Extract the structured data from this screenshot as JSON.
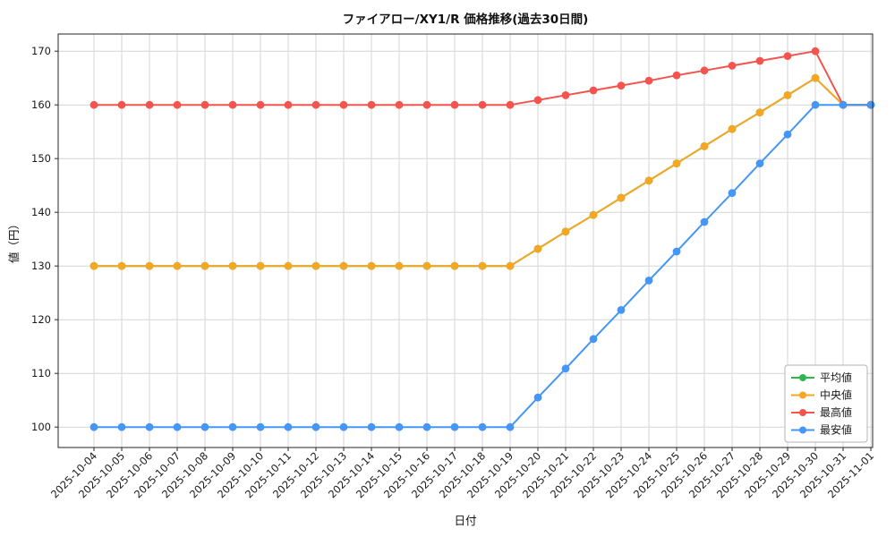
{
  "chart_data": {
    "type": "line",
    "title": "ファイアロー/XY1/R 価格推移(過去30日間)",
    "xlabel": "日付",
    "ylabel": "値（円）",
    "x": [
      "2025-10-04",
      "2025-10-05",
      "2025-10-06",
      "2025-10-07",
      "2025-10-08",
      "2025-10-09",
      "2025-10-10",
      "2025-10-11",
      "2025-10-12",
      "2025-10-13",
      "2025-10-14",
      "2025-10-15",
      "2025-10-16",
      "2025-10-17",
      "2025-10-18",
      "2025-10-19",
      "2025-10-20",
      "2025-10-21",
      "2025-10-22",
      "2025-10-23",
      "2025-10-24",
      "2025-10-25",
      "2025-10-26",
      "2025-10-27",
      "2025-10-28",
      "2025-10-29",
      "2025-10-30",
      "2025-10-31",
      "2025-11-01"
    ],
    "series": [
      {
        "name": "平均値",
        "key": "average",
        "color": "#2db84d",
        "values": [
          130,
          130,
          130,
          130,
          130,
          130,
          130,
          130,
          130,
          130,
          130,
          130,
          130,
          130,
          130,
          130,
          133.2,
          136.4,
          139.5,
          142.7,
          145.9,
          149.1,
          152.3,
          155.5,
          158.6,
          161.8,
          165,
          160,
          160
        ]
      },
      {
        "name": "中央値",
        "key": "median",
        "color": "#f5a623",
        "values": [
          130,
          130,
          130,
          130,
          130,
          130,
          130,
          130,
          130,
          130,
          130,
          130,
          130,
          130,
          130,
          130,
          133.2,
          136.4,
          139.5,
          142.7,
          145.9,
          149.1,
          152.3,
          155.5,
          158.6,
          161.8,
          165,
          160,
          160
        ]
      },
      {
        "name": "最高値",
        "key": "max",
        "color": "#f4534e",
        "values": [
          160,
          160,
          160,
          160,
          160,
          160,
          160,
          160,
          160,
          160,
          160,
          160,
          160,
          160,
          160,
          160,
          160.9,
          161.8,
          162.7,
          163.6,
          164.5,
          165.5,
          166.4,
          167.3,
          168.2,
          169.1,
          170,
          160,
          160
        ]
      },
      {
        "name": "最安値",
        "key": "min",
        "color": "#4596f7",
        "values": [
          100,
          100,
          100,
          100,
          100,
          100,
          100,
          100,
          100,
          100,
          100,
          100,
          100,
          100,
          100,
          100,
          105.5,
          110.9,
          116.4,
          121.8,
          127.3,
          132.7,
          138.2,
          143.6,
          149.1,
          154.5,
          160,
          160,
          160
        ]
      }
    ],
    "yticks": [
      100,
      110,
      120,
      130,
      140,
      150,
      160,
      170
    ],
    "ylim": [
      96.2,
      173.2
    ],
    "grid": true,
    "legend_position": "lower right",
    "background": "#ffffff",
    "grid_color": "#d6d6d6",
    "axis_color": "#262626"
  }
}
